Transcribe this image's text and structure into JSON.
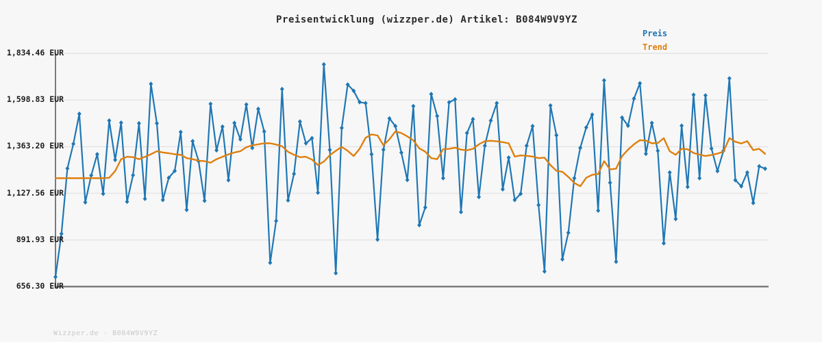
{
  "title": "Preisentwicklung (wizzper.de) Artikel: B084W9V9YZ",
  "watermark": "Wizzper.de - B084W9V9YZ",
  "legend": {
    "preis": "Preis",
    "trend": "Trend"
  },
  "colors": {
    "preis": "#1f77b4",
    "trend": "#de7f0e",
    "background": "#f7f7f7",
    "grid": "#e4e4e4",
    "axis": "#7a7a7a",
    "title_text": "#2b2b2b",
    "tick_text": "#1c1c1c",
    "watermark_text": "#c9c9c9"
  },
  "chart_data": {
    "type": "line",
    "title": "Preisentwicklung (wizzper.de) Artikel: B084W9V9YZ",
    "xlabel": "",
    "ylabel": "EUR",
    "currency": "EUR",
    "grid": true,
    "legend_position": "top-right",
    "ylim": [
      656.3,
      1834.46
    ],
    "y_ticks": [
      {
        "label": "1,834.46 EUR",
        "value": 1834.46
      },
      {
        "label": "1,598.83 EUR",
        "value": 1598.83
      },
      {
        "label": "1,363.20 EUR",
        "value": 1363.2
      },
      {
        "label": "1,127.56 EUR",
        "value": 1127.56
      },
      {
        "label": "891.93 EUR",
        "value": 891.93
      },
      {
        "label": "656.30 EUR",
        "value": 656.3
      }
    ],
    "series": [
      {
        "name": "Preis",
        "color": "#1f77b4",
        "marker": "diamond",
        "values": [
          705,
          923,
          1253,
          1377,
          1529,
          1082,
          1218,
          1325,
          1125,
          1495,
          1296,
          1484,
          1085,
          1219,
          1481,
          1100,
          1680,
          1481,
          1094,
          1206,
          1241,
          1437,
          1044,
          1391,
          1290,
          1090,
          1579,
          1345,
          1464,
          1194,
          1483,
          1400,
          1576,
          1357,
          1554,
          1440,
          777,
          988,
          1654,
          1092,
          1226,
          1490,
          1380,
          1406,
          1131,
          1779,
          1347,
          724,
          1458,
          1677,
          1645,
          1588,
          1583,
          1325,
          894,
          1348,
          1506,
          1467,
          1333,
          1195,
          1568,
          967,
          1056,
          1629,
          1518,
          1204,
          1587,
          1602,
          1033,
          1432,
          1502,
          1109,
          1368,
          1495,
          1583,
          1148,
          1308,
          1094,
          1125,
          1368,
          1467,
          1068,
          733,
          1571,
          1421,
          794,
          929,
          1204,
          1357,
          1460,
          1525,
          1040,
          1698,
          1181,
          782,
          1510,
          1469,
          1606,
          1683,
          1327,
          1483,
          1342,
          875,
          1233,
          998,
          1469,
          1160,
          1625,
          1204,
          1622,
          1354,
          1240,
          1342,
          1708,
          1194,
          1163,
          1233,
          1079,
          1264,
          1252
        ]
      },
      {
        "name": "Trend",
        "color": "#de7f0e",
        "marker": "none",
        "values": [
          1204,
          1204,
          1204,
          1204,
          1204,
          1204,
          1204,
          1204,
          1204,
          1206,
          1240,
          1300,
          1312,
          1310,
          1300,
          1312,
          1325,
          1340,
          1334,
          1330,
          1325,
          1322,
          1305,
          1300,
          1292,
          1290,
          1282,
          1300,
          1312,
          1324,
          1334,
          1340,
          1360,
          1370,
          1375,
          1380,
          1380,
          1374,
          1365,
          1337,
          1322,
          1310,
          1312,
          1298,
          1270,
          1288,
          1320,
          1342,
          1362,
          1342,
          1316,
          1352,
          1408,
          1425,
          1420,
          1370,
          1400,
          1440,
          1432,
          1415,
          1395,
          1355,
          1338,
          1305,
          1300,
          1350,
          1352,
          1358,
          1348,
          1345,
          1352,
          1375,
          1391,
          1393,
          1390,
          1386,
          1380,
          1313,
          1319,
          1317,
          1313,
          1305,
          1308,
          1270,
          1241,
          1236,
          1210,
          1180,
          1163,
          1206,
          1221,
          1225,
          1290,
          1248,
          1252,
          1315,
          1348,
          1375,
          1396,
          1394,
          1380,
          1382,
          1406,
          1340,
          1322,
          1352,
          1350,
          1331,
          1323,
          1316,
          1321,
          1328,
          1338,
          1406,
          1388,
          1379,
          1391,
          1346,
          1352,
          1327
        ]
      }
    ]
  }
}
